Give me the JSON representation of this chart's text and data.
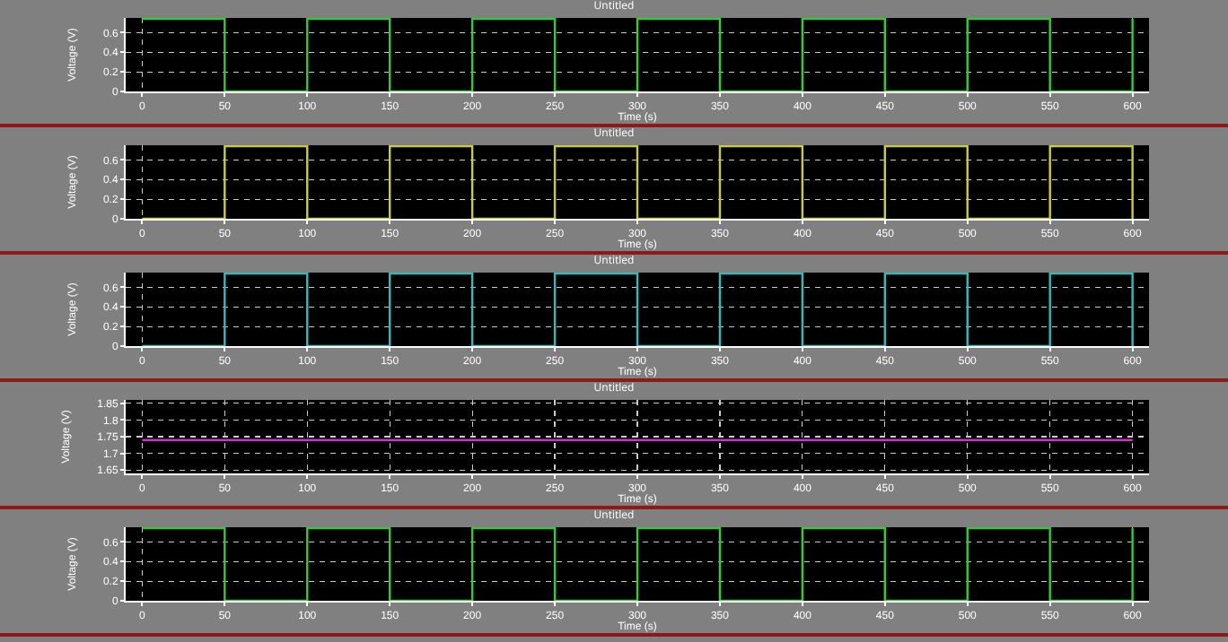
{
  "chart_data": [
    {
      "type": "step",
      "title": "Untitled",
      "xlabel": "Time (s)",
      "ylabel": "Voltage (V)",
      "x": [
        0,
        50,
        100,
        150,
        200,
        250,
        300,
        350,
        400,
        450,
        500,
        550,
        600
      ],
      "series": [
        {
          "color": "#33cc33",
          "values": [
            0.74,
            0,
            0.74,
            0,
            0.74,
            0,
            0.74,
            0,
            0.74,
            0,
            0.74,
            0,
            0.74
          ]
        }
      ],
      "xlim": [
        -10,
        610
      ],
      "xticks": [
        0,
        50,
        100,
        150,
        200,
        250,
        300,
        350,
        400,
        450,
        500,
        550,
        600
      ],
      "ylim": [
        0,
        0.75
      ],
      "yticks": [
        0,
        0.2,
        0.4,
        0.6
      ],
      "grid": true
    },
    {
      "type": "step",
      "title": "Untitled",
      "xlabel": "Time (s)",
      "ylabel": "Voltage (V)",
      "x": [
        0,
        50,
        100,
        150,
        200,
        250,
        300,
        350,
        400,
        450,
        500,
        550,
        600
      ],
      "series": [
        {
          "color": "#cccc33",
          "values": [
            0,
            0.74,
            0,
            0.74,
            0,
            0.74,
            0,
            0.74,
            0,
            0.74,
            0,
            0.74,
            0
          ]
        }
      ],
      "xlim": [
        -10,
        610
      ],
      "xticks": [
        0,
        50,
        100,
        150,
        200,
        250,
        300,
        350,
        400,
        450,
        500,
        550,
        600
      ],
      "ylim": [
        0,
        0.75
      ],
      "yticks": [
        0,
        0.2,
        0.4,
        0.6
      ],
      "grid": true
    },
    {
      "type": "step",
      "title": "Untitled",
      "xlabel": "Time (s)",
      "ylabel": "Voltage (V)",
      "x": [
        0,
        50,
        100,
        150,
        200,
        250,
        300,
        350,
        400,
        450,
        500,
        550,
        600
      ],
      "series": [
        {
          "color": "#33bbbb",
          "values": [
            0,
            0.74,
            0,
            0.74,
            0,
            0.74,
            0,
            0.74,
            0,
            0.74,
            0,
            0.74,
            0
          ]
        }
      ],
      "xlim": [
        -10,
        610
      ],
      "xticks": [
        0,
        50,
        100,
        150,
        200,
        250,
        300,
        350,
        400,
        450,
        500,
        550,
        600
      ],
      "ylim": [
        0,
        0.75
      ],
      "yticks": [
        0,
        0.2,
        0.4,
        0.6
      ],
      "grid": true
    },
    {
      "type": "line",
      "title": "Untitled",
      "xlabel": "Time (s)",
      "ylabel": "Voltage (V)",
      "x": [
        0,
        600
      ],
      "series": [
        {
          "color": "#cc33cc",
          "values": [
            1.74,
            1.74
          ]
        }
      ],
      "xlim": [
        -10,
        610
      ],
      "xticks": [
        0,
        50,
        100,
        150,
        200,
        250,
        300,
        350,
        400,
        450,
        500,
        550,
        600
      ],
      "ylim": [
        1.64,
        1.86
      ],
      "yticks": [
        1.65,
        1.7,
        1.75,
        1.8,
        1.85
      ],
      "grid": true
    },
    {
      "type": "step",
      "title": "Untitled",
      "xlabel": "Time (s)",
      "ylabel": "Voltage (V)",
      "x": [
        0,
        50,
        100,
        150,
        200,
        250,
        300,
        350,
        400,
        450,
        500,
        550,
        600
      ],
      "series": [
        {
          "color": "#33cc33",
          "values": [
            0.74,
            0,
            0.74,
            0,
            0.74,
            0,
            0.74,
            0,
            0.74,
            0,
            0.74,
            0,
            0.74
          ]
        }
      ],
      "xlim": [
        -10,
        610
      ],
      "xticks": [
        0,
        50,
        100,
        150,
        200,
        250,
        300,
        350,
        400,
        450,
        500,
        550,
        600
      ],
      "ylim": [
        0,
        0.75
      ],
      "yticks": [
        0,
        0.2,
        0.4,
        0.6
      ],
      "grid": true
    }
  ]
}
